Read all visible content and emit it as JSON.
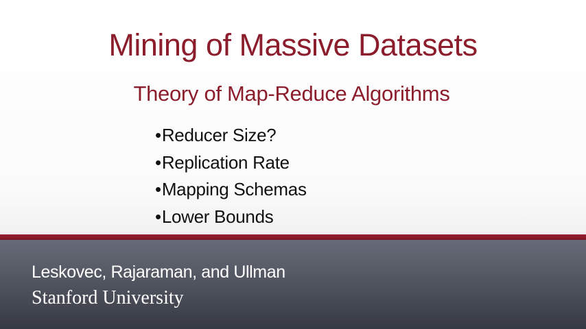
{
  "slide": {
    "title": "Mining of Massive Datasets",
    "subtitle": "Theory of Map-Reduce Algorithms",
    "bullets": [
      {
        "label": "Reducer Size?"
      },
      {
        "label": "Replication Rate"
      },
      {
        "label": "Mapping Schemas"
      },
      {
        "label": "Lower Bounds"
      }
    ],
    "bullet_glyph": "•"
  },
  "footer": {
    "authors": "Leskovec, Rajaraman, and Ullman",
    "institution": "Stanford University"
  },
  "colors": {
    "accent": "#8c1d2c",
    "footer_background": "#4d515c",
    "body_text": "#111111"
  }
}
